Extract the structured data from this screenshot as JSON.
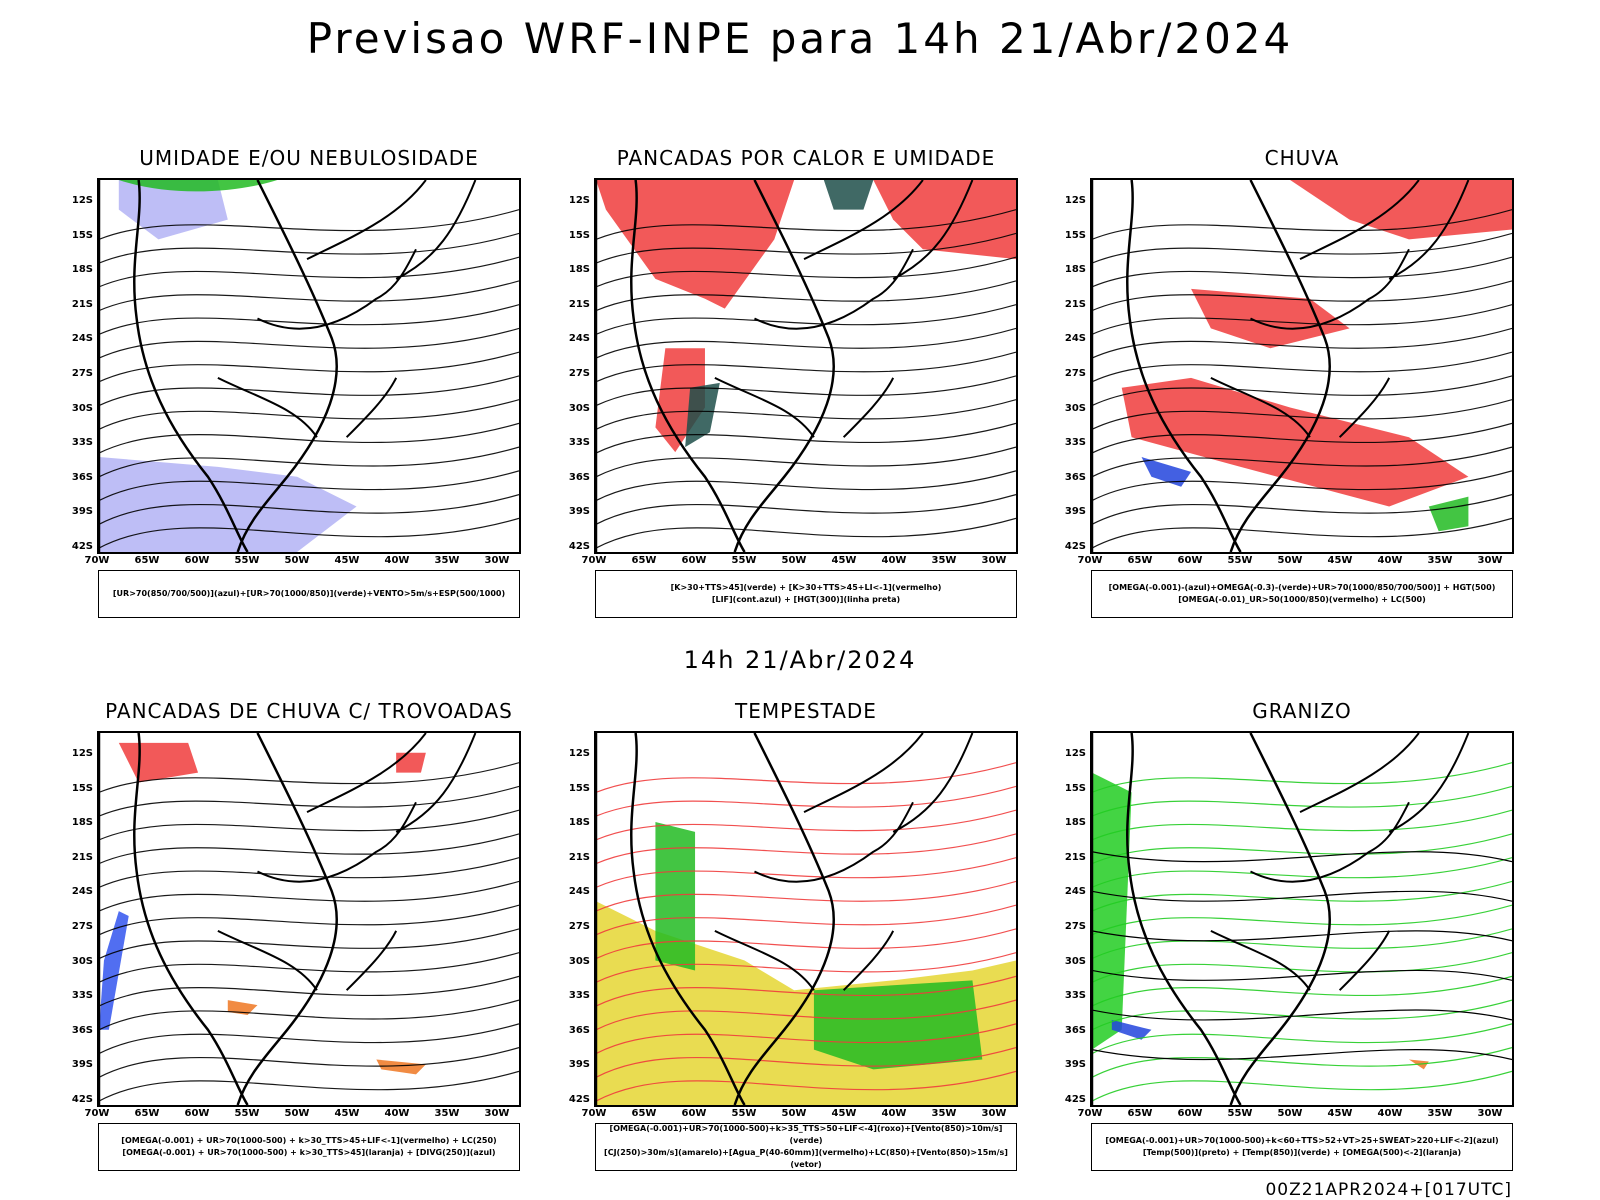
{
  "header": {
    "title": "Previsao WRF-INPE  para 14h 21/Abr/2024"
  },
  "middle": {
    "title": "14h 21/Abr/2024"
  },
  "footer": {
    "run": "00Z21APR2024+[017UTC]"
  },
  "axes": {
    "lat_ticks": [
      "12S",
      "15S",
      "18S",
      "21S",
      "24S",
      "27S",
      "30S",
      "33S",
      "36S",
      "39S",
      "42S"
    ],
    "lon_ticks": [
      "70W",
      "65W",
      "60W",
      "55W",
      "50W",
      "45W",
      "40W",
      "35W",
      "30W"
    ]
  },
  "panels": [
    {
      "title": "UMIDADE E/OU NEBULOSIDADE",
      "legend": [
        "[UR>70(850/700/500)](azul)+[UR>70(1000/850)](verde)+VENTO>5m/s+ESP(500/1000)"
      ],
      "colors": [
        "#b3b3f5",
        "#22bb22",
        "#ee3333"
      ]
    },
    {
      "title": "PANCADAS POR CALOR E UMIDADE",
      "legend": [
        "[K>30+TTS>45](verde) + [K>30+TTS>45+LI<-1](vermelho)",
        "[LIF](cont.azul) + [HGT(300)](linha preta)"
      ],
      "colors": [
        "#f03c3c",
        "#1e4f4a",
        "#3355ee"
      ]
    },
    {
      "title": "CHUVA",
      "legend": [
        "[OMEGA(-0.001)-(azul)+OMEGA(-0.3)-(verde)+UR>70(1000/850/700/500)] + HGT(500)",
        "[OMEGA(-0.01)_UR>50(1000/850)(vermelho) + LC(500)"
      ],
      "colors": [
        "#f03c3c",
        "#2244dd",
        "#22bb22"
      ]
    },
    {
      "title": "PANCADAS DE CHUVA C/ TROVOADAS",
      "legend": [
        "[OMEGA(-0.001) + UR>70(1000-500) + k>30_TTS>45+LIF<-1](vermelho) + LC(250)",
        "[OMEGA(-0.001) + UR>70(1000-500) + k>30_TTS>45](laranja) + [DIVG(250)](azul)"
      ],
      "colors": [
        "#f03c3c",
        "#ee7722",
        "#3355ee"
      ]
    },
    {
      "title": "TEMPESTADE",
      "legend": [
        "[OMEGA(-0.001)+UR>70(1000-500)+k>35_TTS>50+LIF<-4](roxo)+[Vento(850)>10m/s](verde)",
        "[CJ(250)>30m/s](amarelo)+[Agua_P(40-60mm)](vermelho)+LC(850)+[Vento(850)>15m/s](vetor)"
      ],
      "colors": [
        "#e5d632",
        "#22bb22",
        "#f03c3c"
      ]
    },
    {
      "title": "GRANIZO",
      "legend": [
        "[OMEGA(-0.001)+UR>70(1000-500)+k<60+TTS>52+VT>25+SWEAT>220+LIF<-2](azul)",
        "[Temp(500)](preto) + [Temp(850)](verde) + [OMEGA(500)<-2](laranja)"
      ],
      "colors": [
        "#22cc22",
        "#ee7722",
        "#2244dd"
      ]
    }
  ]
}
